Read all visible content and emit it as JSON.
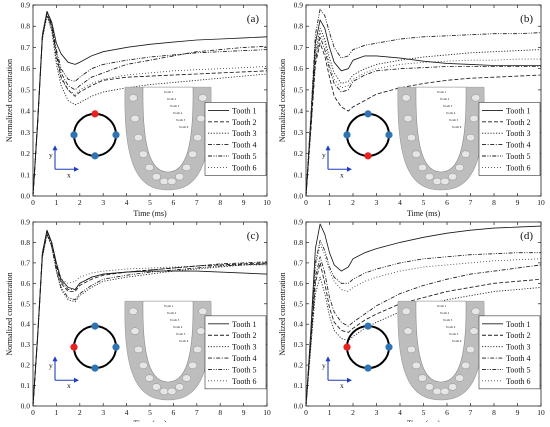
{
  "figure": {
    "panels": [
      {
        "label": "(a)",
        "red_dot": "top"
      },
      {
        "label": "(b)",
        "red_dot": "bottom"
      },
      {
        "label": "(c)",
        "red_dot": "left"
      },
      {
        "label": "(d)",
        "red_dot": "left"
      }
    ],
    "inset": {
      "axis_y_label": "y",
      "axis_x_label": "x",
      "ring_color": "#000000",
      "dot_color": "#2e74b5",
      "highlight_color": "#e8231f",
      "tooth_labels": [
        "Tooth 1",
        "Tooth 2",
        "Tooth 3",
        "Tooth 4",
        "Tooth 5",
        "Tooth 6"
      ]
    }
  },
  "chart_data": [
    {
      "type": "line",
      "panel": "(a)",
      "xlabel": "Time (ms)",
      "ylabel": "Normalized concentration",
      "xlim": [
        0,
        10
      ],
      "ylim": [
        0,
        0.9
      ],
      "xticks": [
        0,
        1,
        2,
        3,
        4,
        5,
        6,
        7,
        8,
        9,
        10
      ],
      "yticks": [
        0.0,
        0.1,
        0.2,
        0.3,
        0.4,
        0.5,
        0.6,
        0.7,
        0.8,
        0.9
      ],
      "x": [
        0,
        0.2,
        0.4,
        0.6,
        0.8,
        1,
        1.2,
        1.5,
        1.8,
        2,
        2.5,
        3,
        4,
        5,
        6,
        7,
        8,
        9,
        10
      ],
      "series": [
        {
          "name": "Tooth 1",
          "style": "solid",
          "values": [
            0,
            0.36,
            0.76,
            0.87,
            0.82,
            0.72,
            0.67,
            0.63,
            0.62,
            0.63,
            0.66,
            0.68,
            0.7,
            0.715,
            0.725,
            0.735,
            0.74,
            0.745,
            0.75
          ]
        },
        {
          "name": "Tooth 2",
          "style": "dash",
          "values": [
            0,
            0.35,
            0.75,
            0.86,
            0.8,
            0.66,
            0.56,
            0.5,
            0.47,
            0.49,
            0.52,
            0.545,
            0.56,
            0.565,
            0.57,
            0.575,
            0.58,
            0.585,
            0.59
          ]
        },
        {
          "name": "Tooth 3",
          "style": "dot",
          "values": [
            0,
            0.34,
            0.74,
            0.85,
            0.78,
            0.62,
            0.52,
            0.45,
            0.43,
            0.44,
            0.47,
            0.49,
            0.51,
            0.525,
            0.535,
            0.545,
            0.555,
            0.565,
            0.575
          ]
        },
        {
          "name": "Tooth 4",
          "style": "dashdot",
          "values": [
            0,
            0.35,
            0.75,
            0.86,
            0.8,
            0.67,
            0.58,
            0.52,
            0.5,
            0.52,
            0.56,
            0.58,
            0.62,
            0.64,
            0.66,
            0.68,
            0.69,
            0.7,
            0.705
          ]
        },
        {
          "name": "Tooth 5",
          "style": "dashdotdot",
          "values": [
            0,
            0.35,
            0.76,
            0.87,
            0.81,
            0.69,
            0.6,
            0.55,
            0.54,
            0.56,
            0.6,
            0.62,
            0.64,
            0.655,
            0.665,
            0.675,
            0.68,
            0.685,
            0.69
          ]
        },
        {
          "name": "Tooth 6",
          "style": "shortdot",
          "values": [
            0,
            0.34,
            0.74,
            0.85,
            0.79,
            0.64,
            0.55,
            0.5,
            0.48,
            0.5,
            0.53,
            0.55,
            0.57,
            0.58,
            0.59,
            0.595,
            0.6,
            0.605,
            0.61
          ]
        }
      ]
    },
    {
      "type": "line",
      "panel": "(b)",
      "xlabel": "Time (ms)",
      "ylabel": "Normalized concentration",
      "xlim": [
        0,
        10
      ],
      "ylim": [
        0,
        0.9
      ],
      "xticks": [
        0,
        1,
        2,
        3,
        4,
        5,
        6,
        7,
        8,
        9,
        10
      ],
      "yticks": [
        0.0,
        0.1,
        0.2,
        0.3,
        0.4,
        0.5,
        0.6,
        0.7,
        0.8,
        0.9
      ],
      "x": [
        0,
        0.2,
        0.4,
        0.6,
        0.8,
        1,
        1.2,
        1.5,
        1.8,
        2,
        2.5,
        3,
        4,
        5,
        6,
        7,
        8,
        9,
        10
      ],
      "series": [
        {
          "name": "Tooth 1",
          "style": "solid",
          "values": [
            0,
            0.35,
            0.72,
            0.83,
            0.79,
            0.7,
            0.63,
            0.59,
            0.6,
            0.64,
            0.66,
            0.66,
            0.65,
            0.635,
            0.625,
            0.62,
            0.615,
            0.615,
            0.615
          ]
        },
        {
          "name": "Tooth 2",
          "style": "dash",
          "values": [
            0,
            0.3,
            0.62,
            0.72,
            0.66,
            0.56,
            0.47,
            0.42,
            0.4,
            0.42,
            0.45,
            0.48,
            0.51,
            0.53,
            0.545,
            0.555,
            0.56,
            0.565,
            0.57
          ]
        },
        {
          "name": "Tooth 3",
          "style": "dot",
          "values": [
            0,
            0.33,
            0.68,
            0.79,
            0.74,
            0.65,
            0.58,
            0.53,
            0.54,
            0.57,
            0.6,
            0.62,
            0.64,
            0.655,
            0.665,
            0.675,
            0.68,
            0.685,
            0.69
          ]
        },
        {
          "name": "Tooth 4",
          "style": "dashdot",
          "values": [
            0,
            0.31,
            0.64,
            0.75,
            0.69,
            0.6,
            0.53,
            0.49,
            0.5,
            0.54,
            0.57,
            0.59,
            0.6,
            0.605,
            0.61,
            0.61,
            0.61,
            0.61,
            0.61
          ]
        },
        {
          "name": "Tooth 5",
          "style": "dashdotdot",
          "values": [
            0,
            0.37,
            0.76,
            0.88,
            0.85,
            0.77,
            0.7,
            0.65,
            0.66,
            0.69,
            0.71,
            0.72,
            0.74,
            0.75,
            0.755,
            0.76,
            0.765,
            0.765,
            0.77
          ]
        },
        {
          "name": "Tooth 6",
          "style": "shortdot",
          "values": [
            0,
            0.32,
            0.66,
            0.77,
            0.72,
            0.62,
            0.55,
            0.51,
            0.52,
            0.55,
            0.58,
            0.6,
            0.62,
            0.63,
            0.635,
            0.64,
            0.64,
            0.645,
            0.645
          ]
        }
      ]
    },
    {
      "type": "line",
      "panel": "(c)",
      "xlabel": "Time (ms)",
      "ylabel": "Normalized concentration",
      "xlim": [
        0,
        10
      ],
      "ylim": [
        0,
        0.9
      ],
      "xticks": [
        0,
        1,
        2,
        3,
        4,
        5,
        6,
        7,
        8,
        9,
        10
      ],
      "yticks": [
        0.0,
        0.1,
        0.2,
        0.3,
        0.4,
        0.5,
        0.6,
        0.7,
        0.8,
        0.9
      ],
      "x": [
        0,
        0.2,
        0.4,
        0.6,
        0.8,
        1,
        1.2,
        1.5,
        1.8,
        2,
        2.5,
        3,
        4,
        5,
        6,
        7,
        8,
        9,
        10
      ],
      "series": [
        {
          "name": "Tooth 1",
          "style": "solid",
          "values": [
            0,
            0.35,
            0.75,
            0.86,
            0.8,
            0.7,
            0.62,
            0.58,
            0.57,
            0.6,
            0.63,
            0.645,
            0.655,
            0.66,
            0.66,
            0.66,
            0.655,
            0.65,
            0.645
          ]
        },
        {
          "name": "Tooth 2",
          "style": "dash",
          "values": [
            0,
            0.34,
            0.74,
            0.85,
            0.79,
            0.68,
            0.6,
            0.56,
            0.56,
            0.59,
            0.62,
            0.64,
            0.655,
            0.665,
            0.675,
            0.685,
            0.69,
            0.695,
            0.7
          ]
        },
        {
          "name": "Tooth 3",
          "style": "dot",
          "values": [
            0,
            0.34,
            0.73,
            0.84,
            0.78,
            0.66,
            0.57,
            0.52,
            0.51,
            0.54,
            0.58,
            0.61,
            0.63,
            0.645,
            0.66,
            0.67,
            0.68,
            0.69,
            0.695
          ]
        },
        {
          "name": "Tooth 4",
          "style": "dashdot",
          "values": [
            0,
            0.35,
            0.75,
            0.86,
            0.8,
            0.69,
            0.61,
            0.57,
            0.57,
            0.6,
            0.63,
            0.645,
            0.655,
            0.665,
            0.675,
            0.685,
            0.695,
            0.7,
            0.705
          ]
        },
        {
          "name": "Tooth 5",
          "style": "dashdotdot",
          "values": [
            0,
            0.34,
            0.73,
            0.84,
            0.78,
            0.66,
            0.58,
            0.53,
            0.52,
            0.55,
            0.59,
            0.62,
            0.64,
            0.655,
            0.665,
            0.675,
            0.685,
            0.69,
            0.695
          ]
        },
        {
          "name": "Tooth 6",
          "style": "shortdot",
          "values": [
            0,
            0.35,
            0.74,
            0.85,
            0.8,
            0.69,
            0.62,
            0.6,
            0.61,
            0.63,
            0.65,
            0.66,
            0.67,
            0.675,
            0.68,
            0.685,
            0.69,
            0.69,
            0.69
          ]
        }
      ]
    },
    {
      "type": "line",
      "panel": "(d)",
      "xlabel": "Time (ms)",
      "ylabel": "Normalized concentration",
      "xlim": [
        0,
        10
      ],
      "ylim": [
        0,
        0.9
      ],
      "xticks": [
        0,
        1,
        2,
        3,
        4,
        5,
        6,
        7,
        8,
        9,
        10
      ],
      "yticks": [
        0.0,
        0.1,
        0.2,
        0.3,
        0.4,
        0.5,
        0.6,
        0.7,
        0.8,
        0.9
      ],
      "x": [
        0,
        0.2,
        0.4,
        0.6,
        0.8,
        1,
        1.2,
        1.5,
        1.8,
        2,
        2.5,
        3,
        4,
        5,
        6,
        7,
        8,
        9,
        10
      ],
      "series": [
        {
          "name": "Tooth 1",
          "style": "solid",
          "values": [
            0,
            0.36,
            0.77,
            0.89,
            0.84,
            0.75,
            0.69,
            0.66,
            0.68,
            0.72,
            0.75,
            0.77,
            0.8,
            0.825,
            0.845,
            0.86,
            0.87,
            0.875,
            0.88
          ]
        },
        {
          "name": "Tooth 2",
          "style": "dash",
          "values": [
            0,
            0.3,
            0.6,
            0.7,
            0.6,
            0.48,
            0.41,
            0.37,
            0.36,
            0.38,
            0.42,
            0.45,
            0.5,
            0.53,
            0.56,
            0.58,
            0.6,
            0.61,
            0.62
          ]
        },
        {
          "name": "Tooth 3",
          "style": "dot",
          "values": [
            0,
            0.28,
            0.55,
            0.63,
            0.55,
            0.44,
            0.37,
            0.33,
            0.32,
            0.34,
            0.38,
            0.41,
            0.46,
            0.49,
            0.52,
            0.54,
            0.56,
            0.57,
            0.58
          ]
        },
        {
          "name": "Tooth 4",
          "style": "dashdot",
          "values": [
            0,
            0.31,
            0.63,
            0.73,
            0.65,
            0.53,
            0.46,
            0.41,
            0.39,
            0.41,
            0.45,
            0.49,
            0.55,
            0.59,
            0.62,
            0.645,
            0.66,
            0.675,
            0.69
          ]
        },
        {
          "name": "Tooth 5",
          "style": "dashdotdot",
          "values": [
            0,
            0.34,
            0.7,
            0.81,
            0.76,
            0.68,
            0.63,
            0.6,
            0.6,
            0.62,
            0.65,
            0.67,
            0.7,
            0.72,
            0.73,
            0.74,
            0.745,
            0.75,
            0.75
          ]
        },
        {
          "name": "Tooth 6",
          "style": "shortdot",
          "values": [
            0,
            0.33,
            0.68,
            0.79,
            0.74,
            0.66,
            0.61,
            0.57,
            0.56,
            0.58,
            0.61,
            0.63,
            0.66,
            0.68,
            0.69,
            0.7,
            0.71,
            0.715,
            0.72
          ]
        }
      ]
    }
  ]
}
